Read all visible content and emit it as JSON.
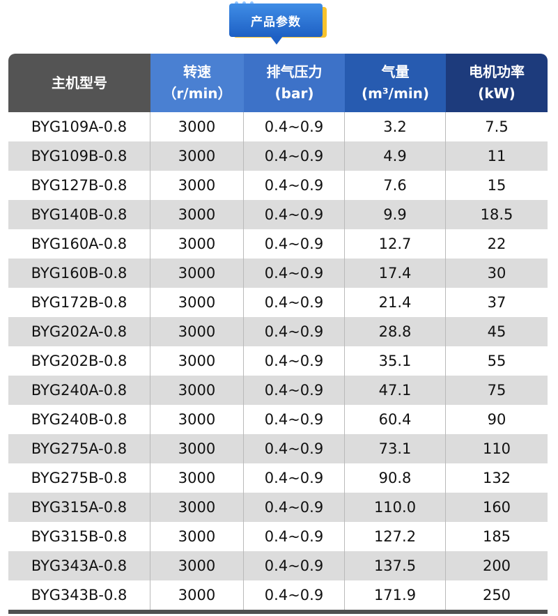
{
  "badge": {
    "label": "产品参数"
  },
  "headers": [
    {
      "line1": "主机型号",
      "line2": ""
    },
    {
      "line1": "转速",
      "line2": "（r/min）"
    },
    {
      "line1": "排气压力",
      "line2": "(bar)"
    },
    {
      "line1": "气量",
      "line2": "(m³/min)"
    },
    {
      "line1": "电机功率",
      "line2": "(kW)"
    }
  ],
  "rows": [
    [
      "BYG109A-0.8",
      "3000",
      "0.4~0.9",
      "3.2",
      "7.5"
    ],
    [
      "BYG109B-0.8",
      "3000",
      "0.4~0.9",
      "4.9",
      "11"
    ],
    [
      "BYG127B-0.8",
      "3000",
      "0.4~0.9",
      "7.6",
      "15"
    ],
    [
      "BYG140B-0.8",
      "3000",
      "0.4~0.9",
      "9.9",
      "18.5"
    ],
    [
      "BYG160A-0.8",
      "3000",
      "0.4~0.9",
      "12.7",
      "22"
    ],
    [
      "BYG160B-0.8",
      "3000",
      "0.4~0.9",
      "17.4",
      "30"
    ],
    [
      "BYG172B-0.8",
      "3000",
      "0.4~0.9",
      "21.4",
      "37"
    ],
    [
      "BYG202A-0.8",
      "3000",
      "0.4~0.9",
      "28.8",
      "45"
    ],
    [
      "BYG202B-0.8",
      "3000",
      "0.4~0.9",
      "35.1",
      "55"
    ],
    [
      "BYG240A-0.8",
      "3000",
      "0.4~0.9",
      "47.1",
      "75"
    ],
    [
      "BYG240B-0.8",
      "3000",
      "0.4~0.9",
      "60.4",
      "90"
    ],
    [
      "BYG275A-0.8",
      "3000",
      "0.4~0.9",
      "73.1",
      "110"
    ],
    [
      "BYG275B-0.8",
      "3000",
      "0.4~0.9",
      "90.8",
      "132"
    ],
    [
      "BYG315A-0.8",
      "3000",
      "0.4~0.9",
      "110.0",
      "160"
    ],
    [
      "BYG315B-0.8",
      "3000",
      "0.4~0.9",
      "127.2",
      "185"
    ],
    [
      "BYG343A-0.8",
      "3000",
      "0.4~0.9",
      "137.5",
      "200"
    ],
    [
      "BYG343B-0.8",
      "3000",
      "0.4~0.9",
      "171.9",
      "250"
    ]
  ]
}
